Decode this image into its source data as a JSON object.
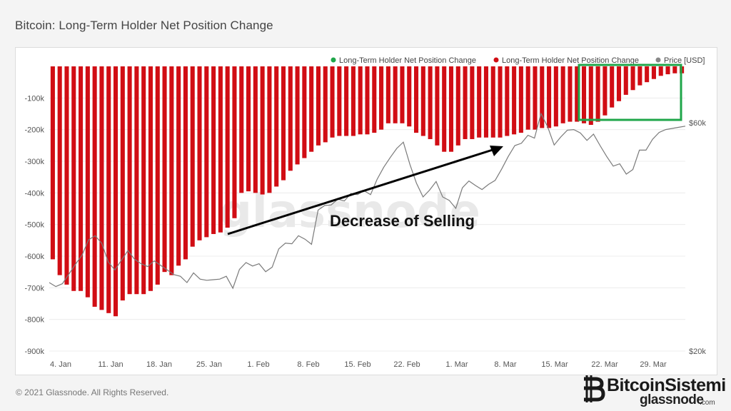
{
  "title": "Bitcoin: Long-Term Holder Net Position Change",
  "footer": "© 2021 Glassnode. All Rights Reserved.",
  "watermark": "glassnode",
  "brand": {
    "name": "BitcoinSistemi",
    "sub": "glassnode",
    "tld": ".com"
  },
  "annotation": "Decrease of Selling",
  "colors": {
    "bars": "#d10d14",
    "green": "#1fa64a",
    "price": "#7a7a7a",
    "arrow": "#000000"
  },
  "chart_data": {
    "type": "bar",
    "legend": [
      {
        "label": "Long-Term Holder Net Position Change",
        "color": "#1fa64a"
      },
      {
        "label": "Long-Term Holder Net Position Change",
        "color": "#d10d14"
      },
      {
        "label": "Price [USD]",
        "color": "#888888"
      }
    ],
    "x_ticks": [
      "4. Jan",
      "11. Jan",
      "18. Jan",
      "25. Jan",
      "1. Feb",
      "8. Feb",
      "15. Feb",
      "22. Feb",
      "1. Mar",
      "8. Mar",
      "15. Mar",
      "22. Mar",
      "29. Mar"
    ],
    "y_left_ticks": [
      "-100k",
      "-200k",
      "-300k",
      "-400k",
      "-500k",
      "-600k",
      "-700k",
      "-800k",
      "-900k"
    ],
    "y_left_range": [
      -900000,
      0
    ],
    "y_right_ticks": [
      "$60k",
      "$20k"
    ],
    "y_right_range": [
      20000,
      60000
    ],
    "x_start": "2021-01-04",
    "x_end": "2021-04-01",
    "series": [
      {
        "name": "Long-Term Holder Net Position Change",
        "color": "#d10d14",
        "values": [
          -610000,
          -660000,
          -690000,
          -710000,
          -710000,
          -730000,
          -760000,
          -770000,
          -780000,
          -790000,
          -740000,
          -720000,
          -720000,
          -720000,
          -710000,
          -690000,
          -650000,
          -660000,
          -630000,
          -610000,
          -570000,
          -550000,
          -540000,
          -530000,
          -525000,
          -510000,
          -480000,
          -400000,
          -395000,
          -400000,
          -405000,
          -400000,
          -380000,
          -360000,
          -330000,
          -310000,
          -290000,
          -270000,
          -250000,
          -240000,
          -225000,
          -220000,
          -220000,
          -220000,
          -215000,
          -215000,
          -210000,
          -200000,
          -180000,
          -180000,
          -180000,
          -190000,
          -210000,
          -220000,
          -230000,
          -250000,
          -270000,
          -270000,
          -250000,
          -230000,
          -230000,
          -225000,
          -225000,
          -225000,
          -225000,
          -220000,
          -215000,
          -210000,
          -200000,
          -200000,
          -195000,
          -195000,
          -190000,
          -180000,
          -175000,
          -175000,
          -180000,
          -185000,
          -175000,
          -155000,
          -130000,
          -110000,
          -90000,
          -75000,
          -60000,
          -50000,
          -40000,
          -30000,
          -25000,
          -22000,
          -22000
        ]
      },
      {
        "name": "Price [USD]",
        "color": "#7a7a7a",
        "axis": "right",
        "values": [
          32000,
          31300,
          31800,
          33500,
          35200,
          36800,
          39500,
          40200,
          38900,
          35600,
          34200,
          35900,
          37600,
          36100,
          35300,
          34800,
          35800,
          35000,
          34200,
          33400,
          33100,
          32000,
          33700,
          32600,
          32400,
          32500,
          32600,
          33100,
          31000,
          34300,
          35500,
          34900,
          35300,
          33900,
          34700,
          37900,
          38900,
          38800,
          40200,
          39600,
          38700,
          44700,
          45500,
          45600,
          46600,
          46300,
          47600,
          47400,
          48100,
          47400,
          50100,
          52200,
          53900,
          55500,
          56600,
          52700,
          49400,
          47000,
          48200,
          49700,
          47000,
          46400,
          45000,
          48600,
          49800,
          49000,
          48300,
          49200,
          49900,
          51900,
          54100,
          56000,
          56400,
          57800,
          57300,
          61600,
          59300,
          56100,
          57500,
          58700,
          58800,
          58200,
          56900,
          58000,
          56000,
          54100,
          52400,
          52800,
          51000,
          51800,
          55200,
          55200,
          57100,
          58300,
          58800,
          59000,
          59200,
          59400
        ]
      }
    ]
  }
}
